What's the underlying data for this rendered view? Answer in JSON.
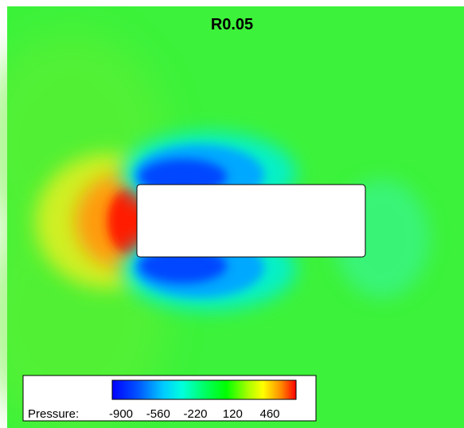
{
  "chart_data": {
    "type": "heatmap",
    "title": "R0.05",
    "variable": "Pressure",
    "legend_label": "Pressure:",
    "colorbar_ticks": [
      -900,
      -560,
      -220,
      120,
      460
    ],
    "colorbar_range": [
      -900,
      600
    ],
    "colorscale": [
      "#0000ff",
      "#00aaff",
      "#00ffff",
      "#00ff55",
      "#00ff00",
      "#66ff00",
      "#ffff00",
      "#ff8800",
      "#ff0000"
    ],
    "background_level": -100,
    "field_features": [
      {
        "feature": "stagnation high pressure",
        "location": "upstream face of body",
        "value": 600
      },
      {
        "feature": "suction low pressure",
        "location": "upper leading corner",
        "value": -900
      },
      {
        "feature": "suction low pressure",
        "location": "lower leading corner",
        "value": -900
      },
      {
        "feature": "mild low pressure",
        "location": "downstream of body",
        "value": -300
      }
    ],
    "body_shape": "rounded rectangle (corner radius 0.05)"
  }
}
